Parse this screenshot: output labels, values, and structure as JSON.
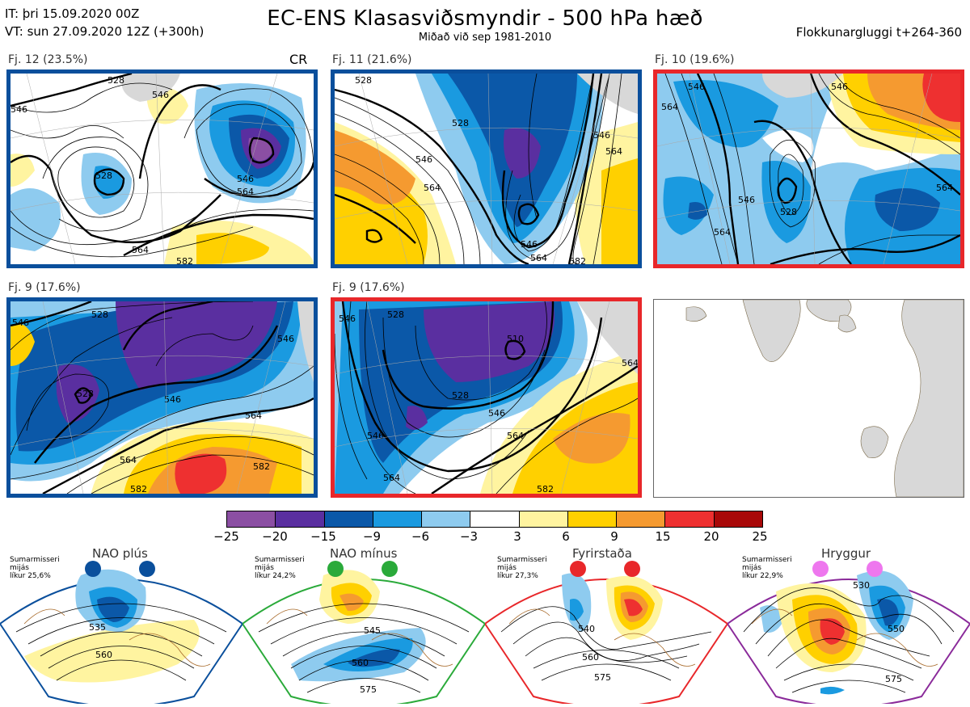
{
  "header": {
    "it_line": "IT: þri 15.09.2020 00Z",
    "vt_line": "VT: sun 27.09.2020 12Z  (+300h)",
    "title": "EC-ENS Klasasviðsmyndir - 500 hPa hæð",
    "subtitle": "Miðað við sep 1981-2010",
    "window": "Flokkunargluggi t+264-360"
  },
  "panels": [
    {
      "label": "Fj. 12 (23.5%)",
      "extra": "CR",
      "border": "#0a4f9c",
      "contours": [
        "528",
        "546",
        "546",
        "564",
        "528",
        "546",
        "564",
        "582"
      ]
    },
    {
      "label": "Fj. 11 (21.6%)",
      "extra": "",
      "border": "#0a4f9c",
      "contours": [
        "528",
        "546",
        "564",
        "546",
        "564",
        "528",
        "546",
        "564",
        "582"
      ]
    },
    {
      "label": "Fj. 10 (19.6%)",
      "extra": "",
      "border": "#e8272a",
      "contours": [
        "546",
        "546",
        "564",
        "528",
        "546",
        "564",
        "564"
      ]
    },
    {
      "label": "Fj. 9 (17.6%)",
      "extra": "",
      "border": "#0a4f9c",
      "contours": [
        "546",
        "528",
        "546",
        "528",
        "546",
        "564",
        "564",
        "582",
        "582"
      ]
    },
    {
      "label": "Fj. 9 (17.6%)",
      "extra": "",
      "border": "#e8272a",
      "contours": [
        "546",
        "528",
        "510",
        "528",
        "546",
        "546",
        "564",
        "564",
        "582",
        "564"
      ]
    }
  ],
  "colorbar": {
    "colors": [
      "#8b4fa3",
      "#5a2fa0",
      "#0b58a8",
      "#1a9ae0",
      "#8ecbef",
      "#ffffff",
      "#fff4a0",
      "#ffd000",
      "#f59a30",
      "#ee3030",
      "#a80808"
    ],
    "ticks": [
      "−25",
      "−20",
      "−15",
      "−9",
      "−6",
      "−3",
      "3",
      "6",
      "9",
      "15",
      "20",
      "25"
    ]
  },
  "regimes": [
    {
      "name": "NAO plús",
      "info": [
        "Sumarmisseri",
        "mijás",
        "líkur 25,6%"
      ],
      "color": "#0a4f9c",
      "dot": "#0a4f9c",
      "contours": [
        "535",
        "560"
      ]
    },
    {
      "name": "NAO mínus",
      "info": [
        "Sumarmisseri",
        "mijás",
        "líkur 24,2%"
      ],
      "color": "#2aaa3a",
      "dot": "#2aaa3a",
      "contours": [
        "545",
        "560",
        "575"
      ]
    },
    {
      "name": "Fyrirstaða",
      "info": [
        "Sumarmisseri",
        "mijás",
        "líkur 27,3%"
      ],
      "color": "#e8272a",
      "dot": "#e8272a",
      "contours": [
        "540",
        "560",
        "575"
      ]
    },
    {
      "name": "Hryggur",
      "info": [
        "Sumarmisseri",
        "mijás",
        "líkur 22,9%"
      ],
      "color": "#8a2a9a",
      "dot": "#ee77ee",
      "contours": [
        "530",
        "550",
        "575"
      ]
    }
  ]
}
